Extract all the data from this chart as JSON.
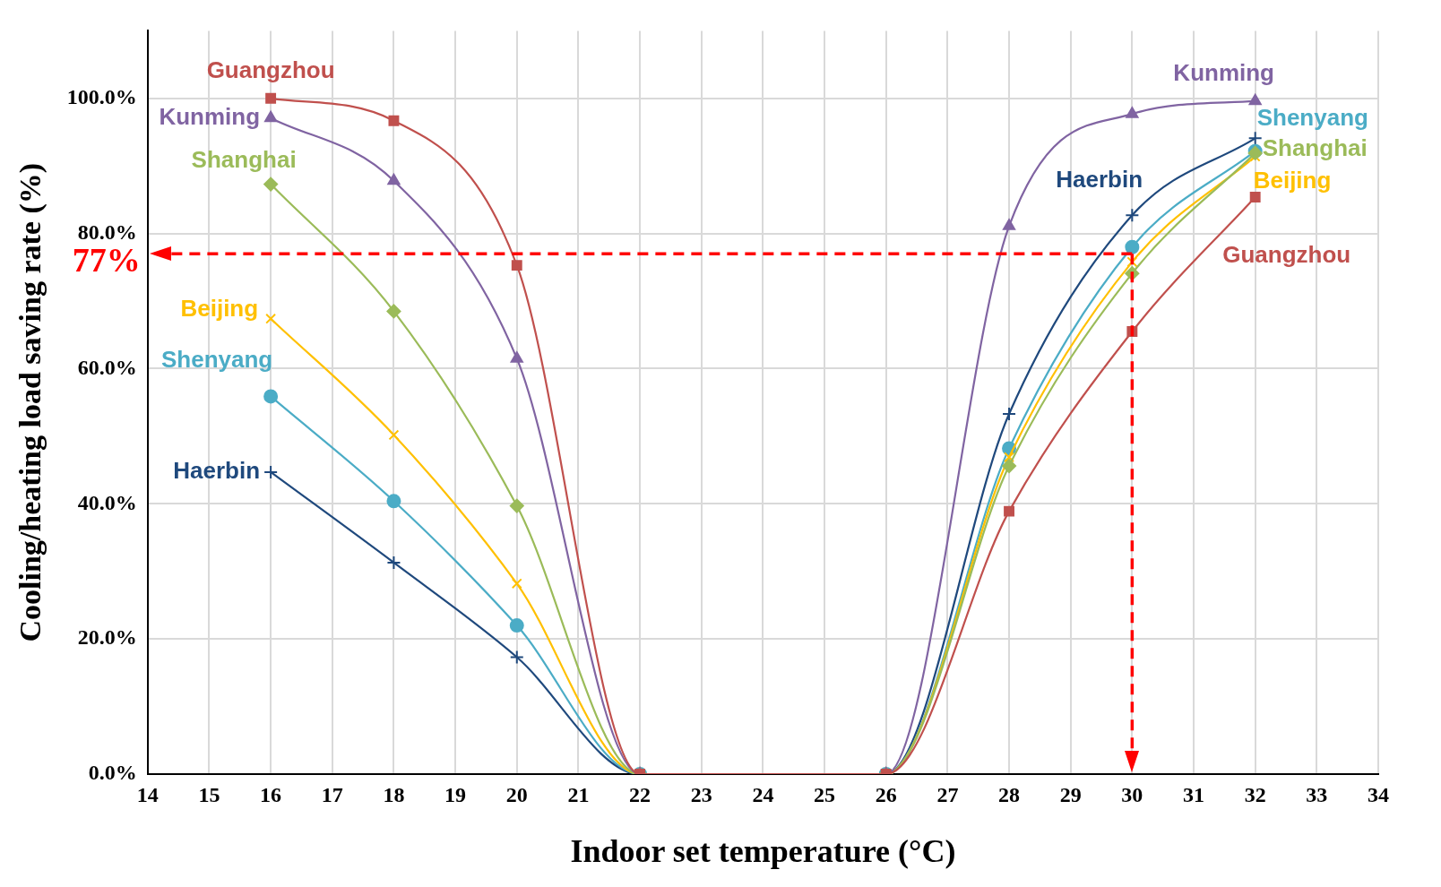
{
  "chart_data": {
    "type": "line",
    "xlabel": "Indoor set temperature (°C)",
    "ylabel": "Cooling/heating load saving rate (%)",
    "x": [
      16,
      18,
      20,
      22,
      26,
      28,
      30,
      32
    ],
    "series": [
      {
        "name": "Guangzhou",
        "color": "#c0504d",
        "marker": "square",
        "values": [
          100,
          96.7,
          75.3,
          0,
          0,
          38.9,
          65.5,
          85.4
        ]
      },
      {
        "name": "Kunming",
        "color": "#8064a2",
        "marker": "triangle",
        "values": [
          97.1,
          87.8,
          61.5,
          0,
          0,
          81.1,
          97.7,
          99.6
        ]
      },
      {
        "name": "Shanghai",
        "color": "#9bbb59",
        "marker": "diamond",
        "values": [
          87.3,
          68.5,
          39.7,
          0,
          0,
          45.6,
          74.1,
          91.9
        ]
      },
      {
        "name": "Beijing",
        "color": "#ffc000",
        "marker": "cross",
        "values": [
          67.4,
          50.2,
          28.2,
          0,
          0,
          46.9,
          75.8,
          91.4
        ]
      },
      {
        "name": "Shenyang",
        "color": "#4bacc6",
        "marker": "circle",
        "values": [
          55.9,
          40.4,
          22.0,
          0,
          0,
          48.2,
          78.0,
          92.2
        ]
      },
      {
        "name": "Haerbin",
        "color": "#1f497d",
        "marker": "plus",
        "values": [
          44.7,
          31.3,
          17.3,
          0,
          0,
          53.3,
          82.7,
          94.1
        ]
      }
    ],
    "xlim": [
      14,
      34
    ],
    "xticks": [
      14,
      15,
      16,
      17,
      18,
      19,
      20,
      21,
      22,
      23,
      24,
      25,
      26,
      27,
      28,
      29,
      30,
      31,
      32,
      33,
      34
    ],
    "ylim": [
      0,
      110
    ],
    "yticks": [
      {
        "value": 0,
        "label": "0.0%"
      },
      {
        "value": 20,
        "label": "20.0%"
      },
      {
        "value": 40,
        "label": "40.0%"
      },
      {
        "value": 60,
        "label": "60.0%"
      },
      {
        "value": 80,
        "label": "80.0%"
      },
      {
        "value": 100,
        "label": "100.0%"
      }
    ],
    "ref_lines": [
      {
        "axis": "y",
        "value": 77,
        "label": "77%",
        "color": "#ff0000",
        "line_style": "dashed"
      },
      {
        "axis": "x",
        "value": 30,
        "color": "#ff0000",
        "line_style": "dashed"
      }
    ],
    "grid": true,
    "legend": false,
    "line_style": "solid"
  }
}
